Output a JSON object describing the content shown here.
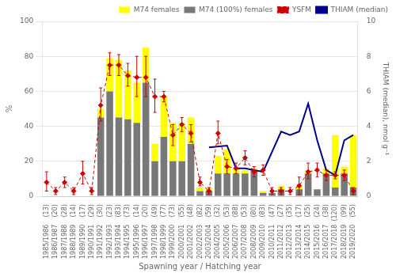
{
  "chart_data": {
    "type": "bar",
    "stacked": true,
    "xlabel": "Spawning year / Hatching year",
    "ylabel": "%",
    "y2label": "THIAM (median), nmol g⁻¹",
    "categories": [
      "1985/1986",
      "1986/1987",
      "1987/1988",
      "1988/1989",
      "1989/1990",
      "1990/1991",
      "1991/1992",
      "1992/1993",
      "1993/1994",
      "1994/1995",
      "1995/1996",
      "1996/1997",
      "1997/1998",
      "1998/1999",
      "1999/2000",
      "2000/2001",
      "2001/2002",
      "2002/2003",
      "2003/2004",
      "2004/2005",
      "2005/2006",
      "2006/2007",
      "2007/2008",
      "2008/2009",
      "2009/2010",
      "2010/2011",
      "2011/2012",
      "2012/2013",
      "2013/2014",
      "2014/2015",
      "2015/2016",
      "2016/2017",
      "2017/2018",
      "2018/2019",
      "2019/2020"
    ],
    "n_females": [
      {
        "value": 13,
        "label": "(13)"
      },
      {
        "value": 20,
        "label": "(20)"
      },
      {
        "value": 28,
        "label": "(28)"
      },
      {
        "value": 14,
        "label": "(14)"
      },
      {
        "value": 17,
        "label": "(17)"
      },
      {
        "value": 29,
        "label": "(29)"
      },
      {
        "value": 30,
        "label": "(30)"
      },
      {
        "value": 23,
        "label": "(23)"
      },
      {
        "value": 83,
        "label": "(83)"
      },
      {
        "value": 73,
        "label": "(73)"
      },
      {
        "value": 14,
        "label": "(14)"
      },
      {
        "value": 20,
        "label": "(20)"
      },
      {
        "value": 49,
        "label": "(49)"
      },
      {
        "value": 77,
        "label": "(77)"
      },
      {
        "value": 73,
        "label": "(73)"
      },
      {
        "value": 55,
        "label": "(55)"
      },
      {
        "value": 48,
        "label": "(48)"
      },
      {
        "value": 82,
        "label": "(82)"
      },
      {
        "value": 59,
        "label": "(59)"
      },
      {
        "value": 32,
        "label": "(32)"
      },
      {
        "value": 53,
        "label": "(53)"
      },
      {
        "value": 88,
        "label": "(88)"
      },
      {
        "value": 53,
        "label": "(53)"
      },
      {
        "value": 80,
        "label": "(80)"
      },
      {
        "value": 83,
        "label": "(83)"
      },
      {
        "value": 47,
        "label": "(47)"
      },
      {
        "value": 27,
        "label": "(27)"
      },
      {
        "value": 35,
        "label": "(35)"
      },
      {
        "value": 17,
        "label": "(17)"
      },
      {
        "value": 25,
        "label": "(25)"
      },
      {
        "value": 24,
        "label": "(24)"
      },
      {
        "value": 38,
        "label": "(38)"
      },
      {
        "value": 120,
        "label": "(120)"
      },
      {
        "value": 99,
        "label": "(99)"
      },
      {
        "value": 55,
        "label": "(55)"
      }
    ],
    "ylim": [
      0,
      100
    ],
    "yticks": [
      0,
      20,
      40,
      60,
      80,
      100
    ],
    "y2lim": [
      0,
      10
    ],
    "y2ticks": [
      0,
      2,
      4,
      6,
      8,
      10
    ],
    "grid": true,
    "legend": "upper right",
    "series": [
      {
        "name": "M74 females",
        "type": "bar",
        "color": "#FFFF00",
        "values": [
          0,
          0,
          0,
          0,
          0,
          0,
          5,
          19,
          33,
          28,
          23,
          20,
          10,
          23,
          22,
          22,
          15,
          2,
          2,
          10,
          14,
          3,
          2,
          1,
          1,
          0,
          2,
          0,
          2,
          2,
          0,
          3,
          30,
          4,
          30
        ]
      },
      {
        "name": "M74 (100%) females",
        "type": "bar",
        "color": "#787878",
        "values": [
          0,
          0,
          0,
          0,
          0,
          0,
          45,
          60,
          45,
          44,
          42,
          65,
          20,
          34,
          20,
          20,
          30,
          3,
          3,
          13,
          13,
          13,
          13,
          15,
          2,
          2,
          4,
          0,
          4,
          13,
          4,
          13,
          5,
          13,
          5
        ]
      },
      {
        "name": "YSFM",
        "type": "line",
        "color": "#CC0000",
        "line_style": "dashed",
        "marker": "diamond",
        "values": [
          8,
          3,
          8,
          3,
          13,
          3,
          52,
          75,
          75,
          69,
          68,
          68,
          57,
          57,
          35,
          41,
          36,
          8,
          3,
          36,
          17,
          16,
          22,
          14,
          15,
          3,
          3,
          3,
          6,
          14,
          15,
          12,
          12,
          12,
          3
        ],
        "err_up": [
          6,
          2,
          3,
          2,
          7,
          2,
          10,
          7,
          6,
          7,
          12,
          12,
          10,
          3,
          6,
          4,
          5,
          3,
          2,
          7,
          4,
          3,
          4,
          3,
          3,
          2,
          2,
          2,
          5,
          5,
          4,
          3,
          2,
          3,
          2
        ],
        "err_down": [
          5,
          2,
          3,
          2,
          6,
          2,
          9,
          6,
          6,
          6,
          11,
          11,
          9,
          3,
          6,
          4,
          5,
          2,
          2,
          6,
          4,
          3,
          4,
          3,
          3,
          2,
          2,
          2,
          5,
          4,
          4,
          3,
          2,
          3,
          2
        ]
      },
      {
        "name": "THIAM (median)",
        "type": "line",
        "color": "#00008B",
        "axis": "y2",
        "values": [
          null,
          null,
          null,
          null,
          null,
          null,
          null,
          null,
          null,
          null,
          null,
          null,
          null,
          null,
          null,
          null,
          null,
          null,
          2.8,
          null,
          2.9,
          1.6,
          1.6,
          1.5,
          1.4,
          null,
          3.7,
          3.5,
          3.7,
          5.3,
          3.2,
          1.5,
          1.2,
          3.2,
          3.5
        ]
      }
    ]
  }
}
